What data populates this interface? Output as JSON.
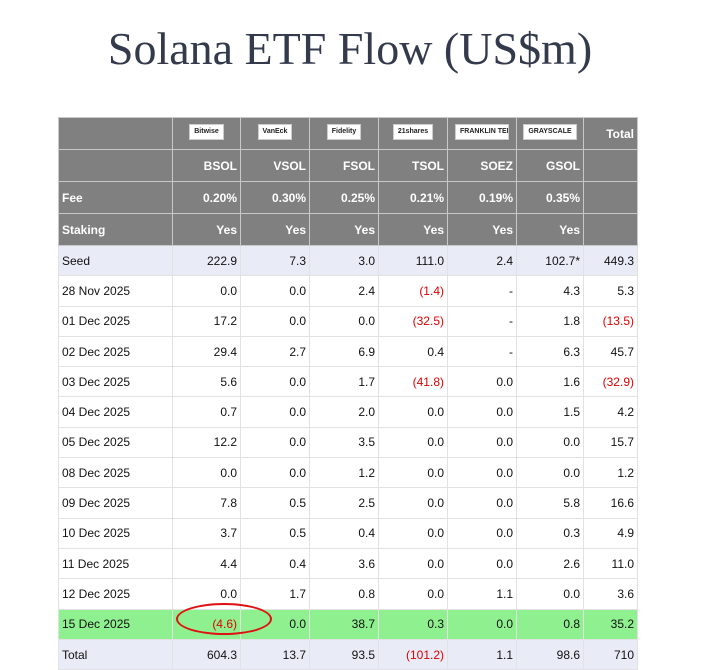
{
  "title": "Solana ETF Flow (US$m)",
  "table": {
    "issuers": [
      "Bitwise",
      "VanEck",
      "Fidelity",
      "21shares",
      "FRANKLIN TEMPLETON",
      "GRAYSCALE"
    ],
    "total_header": "Total",
    "tickers": [
      "BSOL",
      "VSOL",
      "FSOL",
      "TSOL",
      "SOEZ",
      "GSOL"
    ],
    "info_rows": [
      {
        "label": "Fee",
        "cells": [
          "0.20%",
          "0.30%",
          "0.25%",
          "0.21%",
          "0.19%",
          "0.35%"
        ]
      },
      {
        "label": "Staking",
        "cells": [
          "Yes",
          "Yes",
          "Yes",
          "Yes",
          "Yes",
          "Yes"
        ]
      }
    ],
    "rows": [
      {
        "label": "Seed",
        "cells": [
          "222.9",
          "7.3",
          "3.0",
          "111.0",
          "2.4",
          "102.7*",
          "449.3"
        ]
      },
      {
        "label": "28 Nov 2025",
        "cells": [
          "0.0",
          "0.0",
          "2.4",
          "(1.4)",
          "-",
          "4.3",
          "5.3"
        ]
      },
      {
        "label": "01 Dec 2025",
        "cells": [
          "17.2",
          "0.0",
          "0.0",
          "(32.5)",
          "-",
          "1.8",
          "(13.5)"
        ]
      },
      {
        "label": "02 Dec 2025",
        "cells": [
          "29.4",
          "2.7",
          "6.9",
          "0.4",
          "-",
          "6.3",
          "45.7"
        ]
      },
      {
        "label": "03 Dec 2025",
        "cells": [
          "5.6",
          "0.0",
          "1.7",
          "(41.8)",
          "0.0",
          "1.6",
          "(32.9)"
        ]
      },
      {
        "label": "04 Dec 2025",
        "cells": [
          "0.7",
          "0.0",
          "2.0",
          "0.0",
          "0.0",
          "1.5",
          "4.2"
        ]
      },
      {
        "label": "05 Dec 2025",
        "cells": [
          "12.2",
          "0.0",
          "3.5",
          "0.0",
          "0.0",
          "0.0",
          "15.7"
        ]
      },
      {
        "label": "08 Dec 2025",
        "cells": [
          "0.0",
          "0.0",
          "1.2",
          "0.0",
          "0.0",
          "0.0",
          "1.2"
        ]
      },
      {
        "label": "09 Dec 2025",
        "cells": [
          "7.8",
          "0.5",
          "2.5",
          "0.0",
          "0.0",
          "5.8",
          "16.6"
        ]
      },
      {
        "label": "10 Dec 2025",
        "cells": [
          "3.7",
          "0.5",
          "0.4",
          "0.0",
          "0.0",
          "0.3",
          "4.9"
        ]
      },
      {
        "label": "11 Dec 2025",
        "cells": [
          "4.4",
          "0.4",
          "3.6",
          "0.0",
          "0.0",
          "2.6",
          "11.0"
        ]
      },
      {
        "label": "12 Dec 2025",
        "cells": [
          "0.0",
          "1.7",
          "0.8",
          "0.0",
          "1.1",
          "0.0",
          "3.6"
        ]
      },
      {
        "label": "15 Dec 2025",
        "cells": [
          "(4.6)",
          "0.0",
          "38.7",
          "0.3",
          "0.0",
          "0.8",
          "35.2"
        ]
      },
      {
        "label": "Total",
        "cells": [
          "604.3",
          "13.7",
          "93.5",
          "(101.2)",
          "1.1",
          "98.6",
          "710"
        ]
      }
    ]
  }
}
